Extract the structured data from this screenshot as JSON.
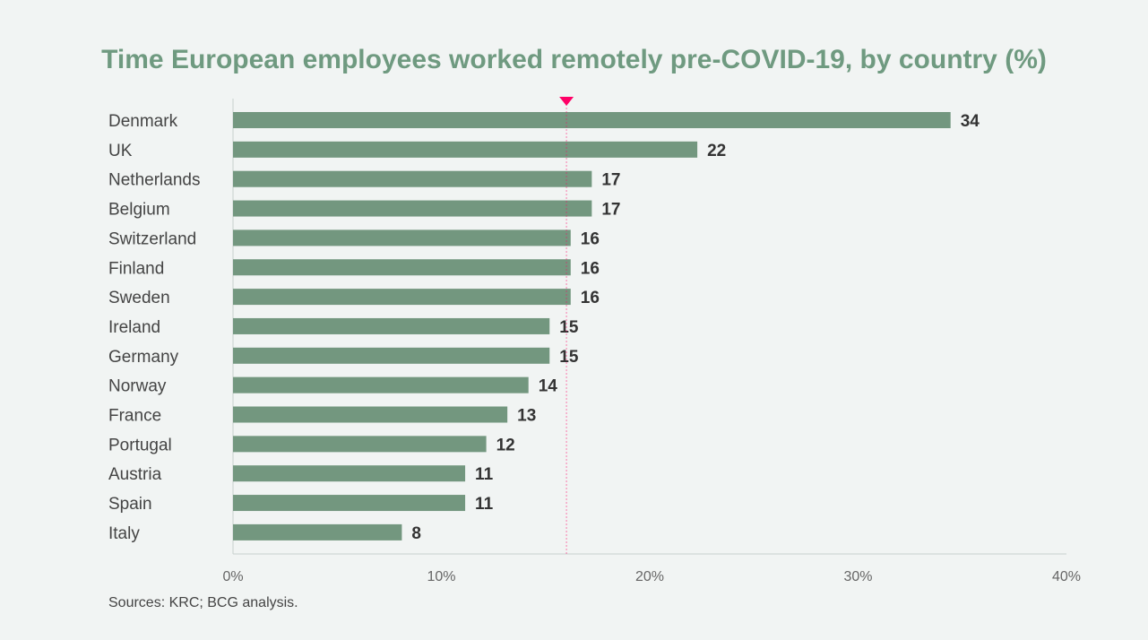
{
  "chart_data": {
    "type": "bar",
    "orientation": "horizontal",
    "title": "Time European employees worked remotely pre-COVID-19, by country (%)",
    "categories": [
      "Denmark",
      "UK",
      "Netherlands",
      "Belgium",
      "Switzerland",
      "Finland",
      "Sweden",
      "Ireland",
      "Germany",
      "Norway",
      "France",
      "Portugal",
      "Austria",
      "Spain",
      "Italy"
    ],
    "values": [
      34,
      22,
      17,
      17,
      16,
      16,
      16,
      15,
      15,
      14,
      13,
      12,
      11,
      11,
      8
    ],
    "xlim": [
      0,
      40
    ],
    "x_ticks": [
      "0%",
      "10%",
      "20%",
      "30%",
      "40%"
    ],
    "x_tick_values": [
      0,
      10,
      20,
      30,
      40
    ],
    "reference_line": 15.8,
    "grid": false,
    "colors": {
      "bar": "#73977f",
      "title": "#6f9a80",
      "reference": "#ff0066",
      "background": "#f1f4f3",
      "label": "#333333"
    }
  },
  "source": "Sources: KRC; BCG analysis."
}
